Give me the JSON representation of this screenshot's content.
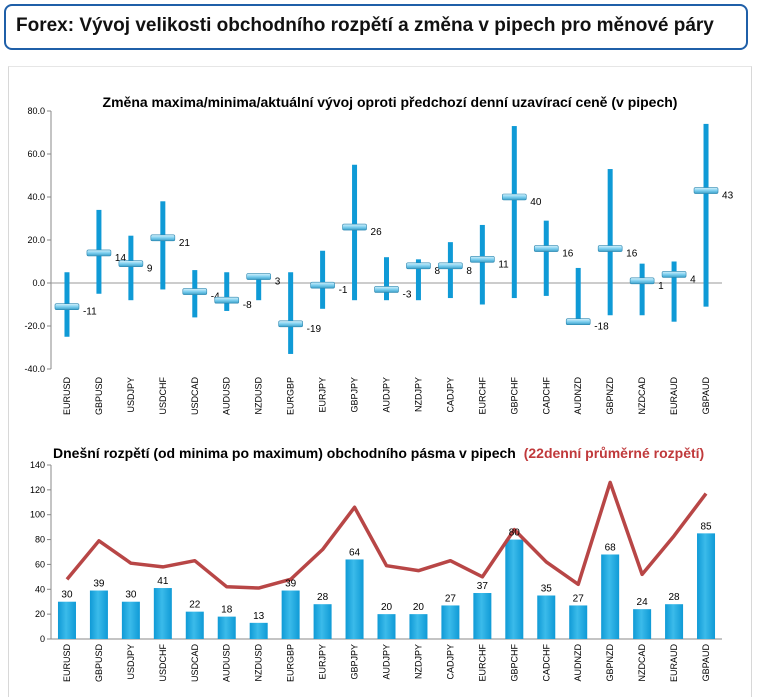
{
  "header": {
    "title": "Forex: Vývoj velikosti obchodního rozpětí a změna v pipech pro měnové páry"
  },
  "colors": {
    "bar": "#0f9ad6",
    "bar_light": "#3bbbea",
    "marker": "#7fd0f0",
    "line": "#b84646",
    "header_border": "#1f5fa8"
  },
  "chart_data": [
    {
      "type": "range",
      "title": "Změna maxima/minima/aktuální vývoj oproti předchozí denní uzavírací ceně (v pipech)",
      "xlabel": "",
      "ylabel": "",
      "ylim": [
        -40,
        80
      ],
      "yticks": [
        "80.0",
        "60.0",
        "40.0",
        "20.0",
        "0.0",
        "-20.0",
        "-40.0"
      ],
      "grid": false,
      "categories": [
        "EURUSD",
        "GBPUSD",
        "USDJPY",
        "USDCHF",
        "USDCAD",
        "AUDUSD",
        "NZDUSD",
        "EURGBP",
        "EURJPY",
        "GBPJPY",
        "AUDJPY",
        "NZDJPY",
        "CADJPY",
        "EURCHF",
        "GBPCHF",
        "CADCHF",
        "AUDNZD",
        "GBPNZD",
        "NZDCAD",
        "EURAUD",
        "GBPAUD"
      ],
      "high": [
        5,
        34,
        22,
        38,
        6,
        5,
        4,
        5,
        15,
        55,
        12,
        11,
        19,
        27,
        73,
        29,
        7,
        53,
        9,
        10,
        74
      ],
      "low": [
        -25,
        -5,
        -8,
        -3,
        -16,
        -13,
        -8,
        -33,
        -12,
        -8,
        -8,
        -8,
        -7,
        -10,
        -7,
        -6,
        -19,
        -15,
        -15,
        -18,
        -11
      ],
      "current": [
        -11,
        14,
        9,
        21,
        -4,
        -8,
        3,
        -19,
        -1,
        26,
        -3,
        8,
        8,
        11,
        40,
        16,
        -18,
        16,
        1,
        4,
        43
      ],
      "labels": [
        "-11",
        "14",
        "9",
        "21",
        "-4",
        "-8",
        "3",
        "-19",
        "-1",
        "26",
        "-3",
        "8",
        "8",
        "11",
        "40",
        "16",
        "-18",
        "16",
        "1",
        "4",
        "43"
      ]
    },
    {
      "type": "bar+line",
      "title": "Dnešní rozpětí (od minima po maximum) obchodního pásma v pipech",
      "title_red": "(22denní průměrné rozpětí)",
      "xlabel": "",
      "ylabel": "",
      "ylim": [
        0,
        140
      ],
      "yticks": [
        "140",
        "120",
        "100",
        "80",
        "60",
        "40",
        "20",
        "0"
      ],
      "grid": false,
      "categories": [
        "EURUSD",
        "GBPUSD",
        "USDJPY",
        "USDCHF",
        "USDCAD",
        "AUDUSD",
        "NZDUSD",
        "EURGBP",
        "EURJPY",
        "GBPJPY",
        "AUDJPY",
        "NZDJPY",
        "CADJPY",
        "EURCHF",
        "GBPCHF",
        "CADCHF",
        "AUDNZD",
        "GBPNZD",
        "NZDCAD",
        "EURAUD",
        "GBPAUD"
      ],
      "values": [
        30,
        39,
        30,
        41,
        22,
        18,
        13,
        39,
        28,
        64,
        20,
        20,
        27,
        37,
        80,
        35,
        27,
        68,
        24,
        28,
        85
      ],
      "labels": [
        "30",
        "39",
        "30",
        "41",
        "22",
        "18",
        "13",
        "39",
        "28",
        "64",
        "20",
        "20",
        "27",
        "37",
        "80",
        "35",
        "27",
        "68",
        "24",
        "28",
        "85"
      ],
      "average": [
        48,
        79,
        61,
        58,
        63,
        42,
        41,
        48,
        72,
        106,
        59,
        55,
        63,
        50,
        88,
        62,
        44,
        126,
        52,
        83,
        117
      ]
    }
  ]
}
